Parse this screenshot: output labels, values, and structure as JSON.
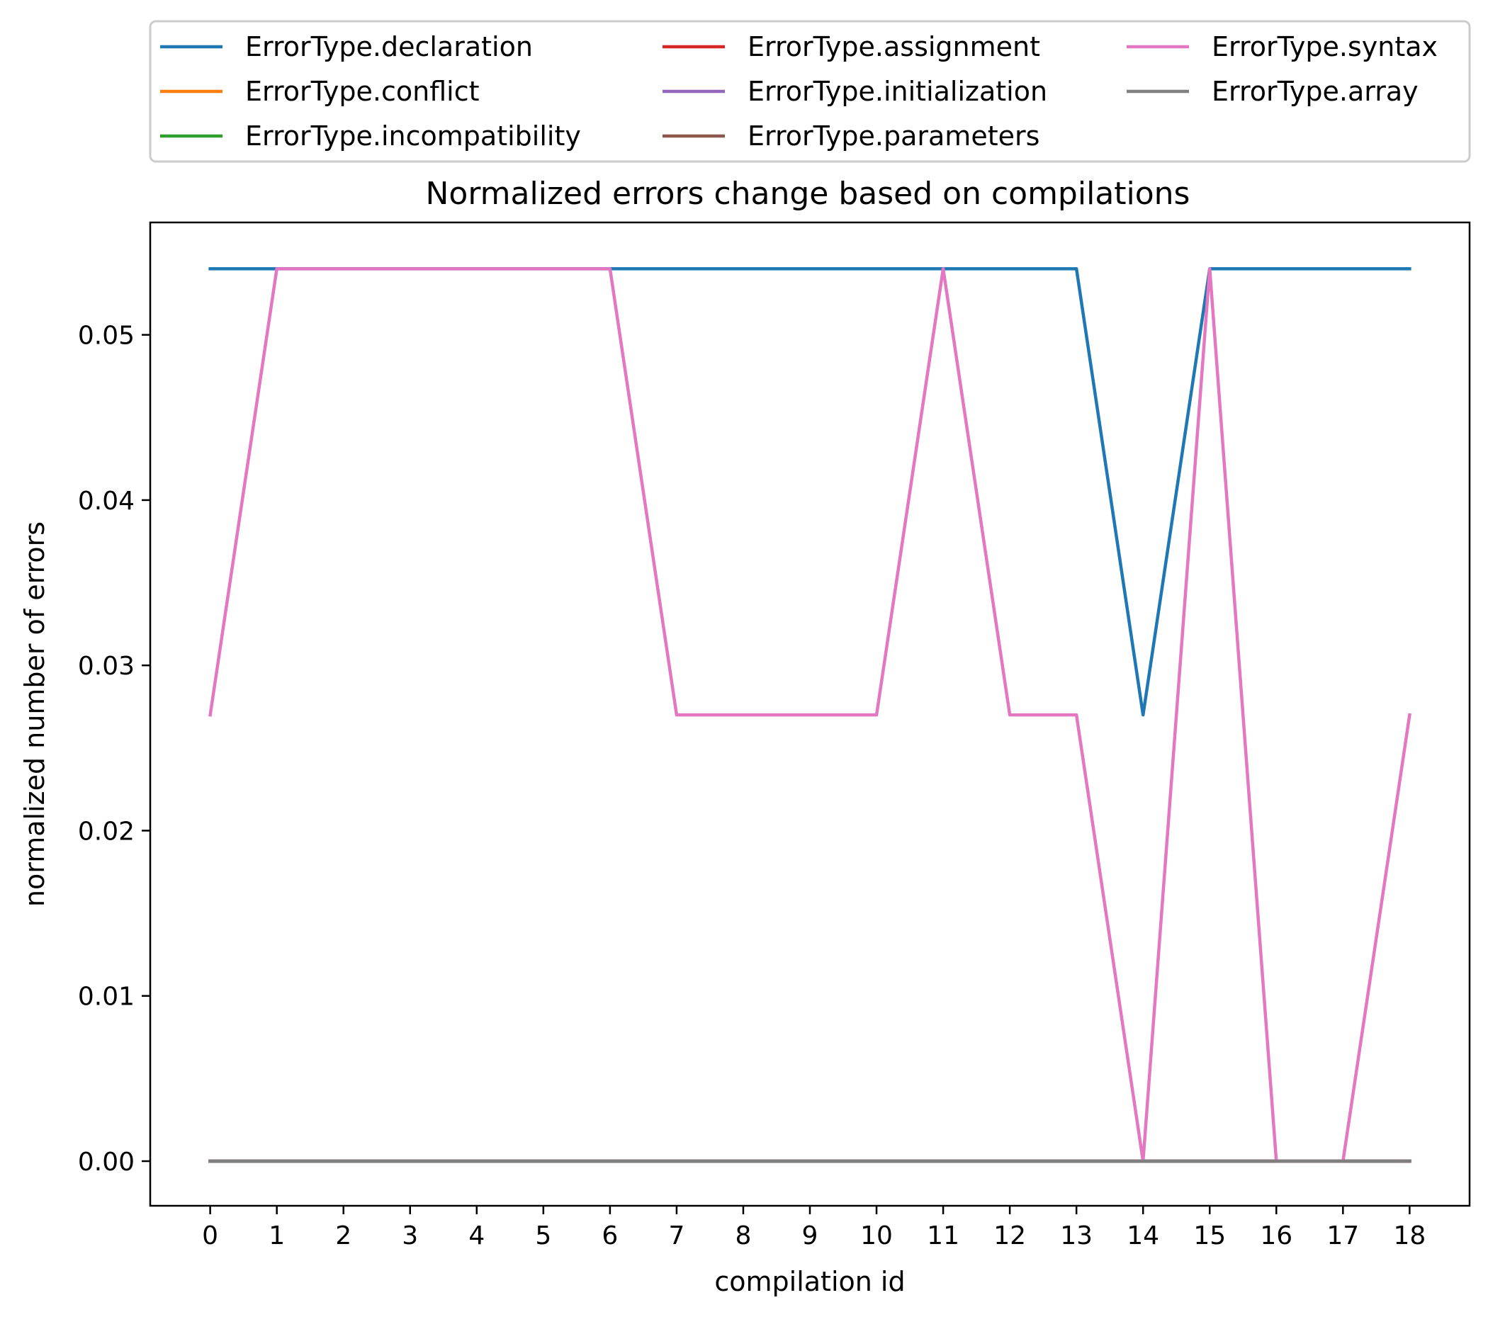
{
  "chart_data": {
    "type": "line",
    "title": "Normalized errors change based on compilations",
    "xlabel": "compilation id",
    "ylabel": "normalized number of errors",
    "x": [
      0,
      1,
      2,
      3,
      4,
      5,
      6,
      7,
      8,
      9,
      10,
      11,
      12,
      13,
      14,
      15,
      16,
      17,
      18
    ],
    "x_ticks": [
      "0",
      "1",
      "2",
      "3",
      "4",
      "5",
      "6",
      "7",
      "8",
      "9",
      "10",
      "11",
      "12",
      "13",
      "14",
      "15",
      "16",
      "17",
      "18"
    ],
    "y_ticks": [
      "0.00",
      "0.01",
      "0.02",
      "0.03",
      "0.04",
      "0.05"
    ],
    "y_tick_values": [
      0,
      0.01,
      0.02,
      0.03,
      0.04,
      0.05
    ],
    "xlim": [
      -0.9,
      18.9
    ],
    "ylim": [
      -0.0027,
      0.0568
    ],
    "grid": false,
    "legend_position": "above plot, 3 columns",
    "series": [
      {
        "name": "ErrorType.declaration",
        "color": "#1f77b4",
        "values": [
          0.054,
          0.054,
          0.054,
          0.054,
          0.054,
          0.054,
          0.054,
          0.054,
          0.054,
          0.054,
          0.054,
          0.054,
          0.054,
          0.054,
          0.027,
          0.054,
          0.054,
          0.054,
          0.054
        ]
      },
      {
        "name": "ErrorType.conflict",
        "color": "#ff7f0e",
        "values": [
          0,
          0,
          0,
          0,
          0,
          0,
          0,
          0,
          0,
          0,
          0,
          0,
          0,
          0,
          0,
          0,
          0,
          0,
          0
        ]
      },
      {
        "name": "ErrorType.incompatibility",
        "color": "#2ca02c",
        "values": [
          0,
          0,
          0,
          0,
          0,
          0,
          0,
          0,
          0,
          0,
          0,
          0,
          0,
          0,
          0,
          0,
          0,
          0,
          0
        ]
      },
      {
        "name": "ErrorType.assignment",
        "color": "#d62728",
        "values": [
          0,
          0,
          0,
          0,
          0,
          0,
          0,
          0,
          0,
          0,
          0,
          0,
          0,
          0,
          0,
          0,
          0,
          0,
          0
        ]
      },
      {
        "name": "ErrorType.initialization",
        "color": "#9467bd",
        "values": [
          0,
          0,
          0,
          0,
          0,
          0,
          0,
          0,
          0,
          0,
          0,
          0,
          0,
          0,
          0,
          0,
          0,
          0,
          0
        ]
      },
      {
        "name": "ErrorType.parameters",
        "color": "#8c564b",
        "values": [
          0,
          0,
          0,
          0,
          0,
          0,
          0,
          0,
          0,
          0,
          0,
          0,
          0,
          0,
          0,
          0,
          0,
          0,
          0
        ]
      },
      {
        "name": "ErrorType.syntax",
        "color": "#e377c2",
        "values": [
          0.027,
          0.054,
          0.054,
          0.054,
          0.054,
          0.054,
          0.054,
          0.027,
          0.027,
          0.027,
          0.027,
          0.054,
          0.027,
          0.027,
          0,
          0.054,
          0,
          0,
          0.027
        ]
      },
      {
        "name": "ErrorType.array",
        "color": "#7f7f7f",
        "values": [
          0,
          0,
          0,
          0,
          0,
          0,
          0,
          0,
          0,
          0,
          0,
          0,
          0,
          0,
          0,
          0,
          0,
          0,
          0
        ]
      }
    ]
  }
}
